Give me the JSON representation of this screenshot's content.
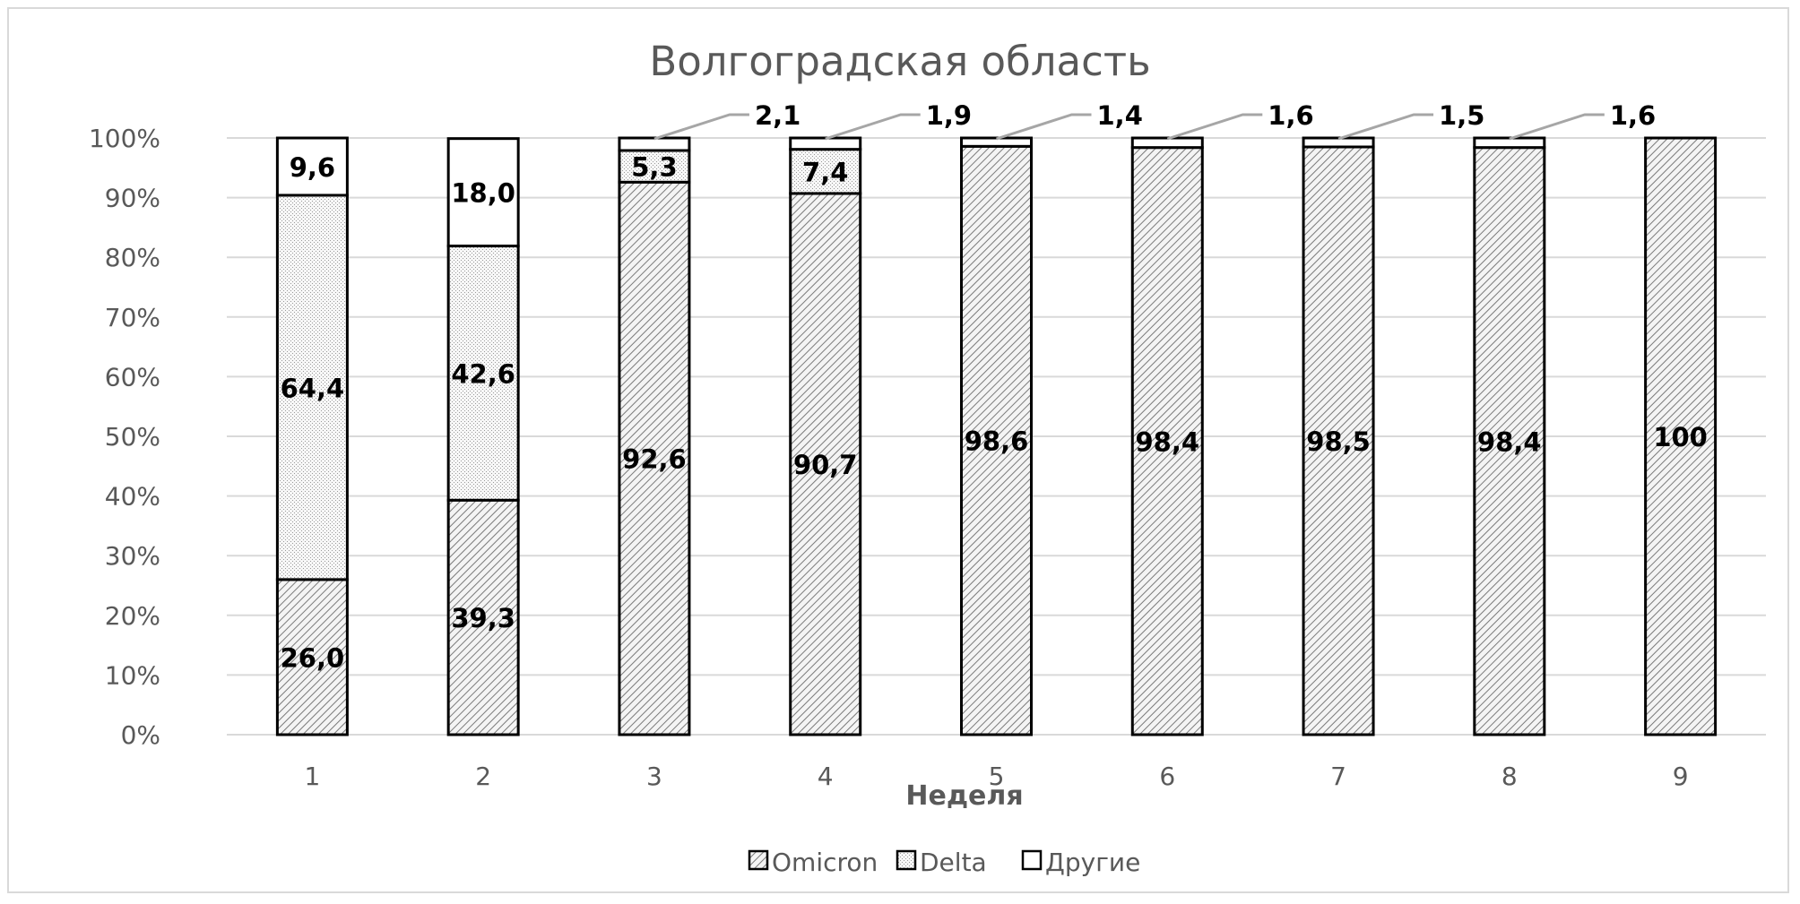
{
  "chart_data": {
    "type": "bar",
    "stacked": true,
    "percent": true,
    "title": "Волгоградская область",
    "xlabel": "Неделя",
    "ylabel": "",
    "ylim": [
      0,
      100
    ],
    "yticks": [
      "0%",
      "10%",
      "20%",
      "30%",
      "40%",
      "50%",
      "60%",
      "70%",
      "80%",
      "90%",
      "100%"
    ],
    "categories": [
      "1",
      "2",
      "3",
      "4",
      "5",
      "6",
      "7",
      "8",
      "9"
    ],
    "series": [
      {
        "name": "Omicron",
        "values": [
          26.0,
          39.3,
          92.6,
          90.7,
          98.6,
          98.4,
          98.5,
          98.4,
          100
        ],
        "labels": [
          "26,0",
          "39,3",
          "92,6",
          "90,7",
          "98,6",
          "98,4",
          "98,5",
          "98,4",
          "100"
        ],
        "pattern": "hatch"
      },
      {
        "name": "Delta",
        "values": [
          64.4,
          42.6,
          5.3,
          7.4,
          0,
          0,
          0,
          0,
          0
        ],
        "labels": [
          "64,4",
          "42,6",
          "5,3",
          "7,4",
          "",
          "",
          "",
          "",
          ""
        ],
        "pattern": "dots"
      },
      {
        "name": "Другие",
        "values": [
          9.6,
          18.0,
          2.1,
          1.9,
          1.4,
          1.6,
          1.5,
          1.6,
          0
        ],
        "labels": [
          "9,6",
          "18,0",
          "2,1",
          "1,9",
          "1,4",
          "1,6",
          "1,5",
          "1,6",
          ""
        ],
        "pattern": "none"
      }
    ],
    "legend_position": "bottom",
    "grid": true
  }
}
